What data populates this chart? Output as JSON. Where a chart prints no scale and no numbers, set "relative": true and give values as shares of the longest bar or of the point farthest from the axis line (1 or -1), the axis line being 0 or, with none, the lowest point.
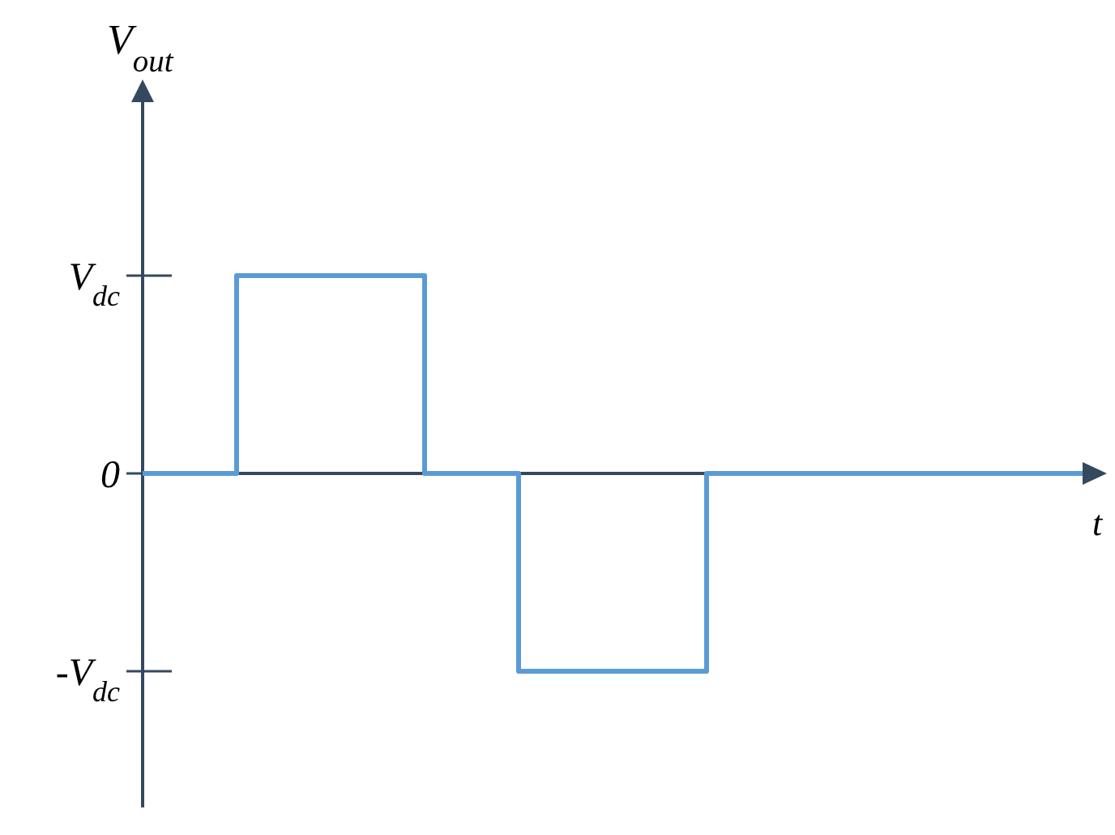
{
  "chart_data": {
    "type": "step",
    "xlabel": "t",
    "ylabel": "V$_{out}$",
    "relative": true,
    "categories": [
      null,
      null,
      null,
      null,
      null,
      null,
      null,
      null,
      null,
      null,
      null
    ],
    "values": [
      0,
      1,
      1,
      0,
      -1,
      -1,
      0,
      0,
      0,
      0,
      0
    ],
    "color": "#5b9bd5",
    "annotations": [
      "V$_{dc}$",
      "0",
      "-V$_{dc}$"
    ]
  }
}
